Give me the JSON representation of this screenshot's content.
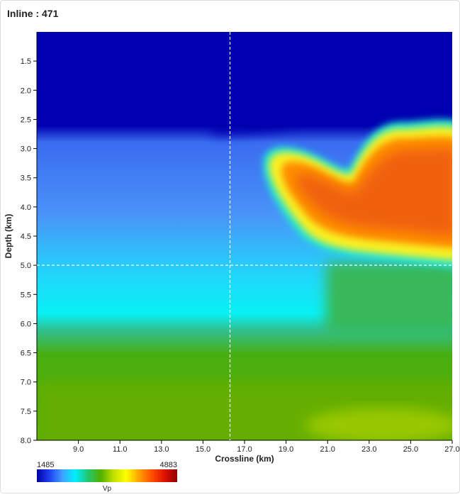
{
  "chart_data": {
    "type": "heatmap",
    "title": "Inline : 471",
    "x_label": "Crossline (km)",
    "y_label": "Depth (km)",
    "xlim": [
      7.0,
      27.0
    ],
    "ylim": [
      1.0,
      8.0
    ],
    "y_inverted": true,
    "xticks": [
      {
        "value": 9,
        "label": "9.0"
      },
      {
        "value": 11,
        "label": "11.0"
      },
      {
        "value": 13,
        "label": "13.0"
      },
      {
        "value": 15,
        "label": "15.0"
      },
      {
        "value": 17,
        "label": "17.0"
      },
      {
        "value": 19,
        "label": "19.0"
      },
      {
        "value": 21,
        "label": "21.0"
      },
      {
        "value": 23,
        "label": "23.0"
      },
      {
        "value": 25,
        "label": "25.0"
      },
      {
        "value": 27,
        "label": "27.0"
      }
    ],
    "yticks": [
      1.5,
      {
        "value": 2,
        "label": "2.0"
      },
      2.5,
      {
        "value": 3,
        "label": "3.0"
      },
      3.5,
      {
        "value": 4,
        "label": "4.0"
      },
      4.5,
      {
        "value": 5,
        "label": "5.0"
      },
      5.5,
      {
        "value": 6,
        "label": "6.0"
      },
      6.5,
      {
        "value": 7,
        "label": "7.0"
      },
      7.5,
      {
        "value": 8,
        "label": "8.0"
      }
    ],
    "crosshair": {
      "x": 16.3,
      "y": 5.0
    },
    "colorbar": {
      "label": "Vp",
      "min": 1485,
      "max": 4883,
      "colormap": [
        "#0000a8",
        "#2040f0",
        "#40a0ff",
        "#00f0ff",
        "#20c870",
        "#50b000",
        "#c0e000",
        "#ffff00",
        "#ffa000",
        "#ff5000",
        "#e01000",
        "#900000"
      ]
    }
  }
}
